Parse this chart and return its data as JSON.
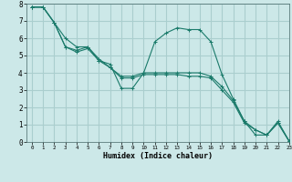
{
  "xlabel": "Humidex (Indice chaleur)",
  "ylabel": "",
  "background_color": "#cce8e8",
  "grid_color": "#aacece",
  "line_color": "#1a7a6a",
  "xlim": [
    -0.5,
    23
  ],
  "ylim": [
    0,
    8
  ],
  "xticks": [
    0,
    1,
    2,
    3,
    4,
    5,
    6,
    7,
    8,
    9,
    10,
    11,
    12,
    13,
    14,
    15,
    16,
    17,
    18,
    19,
    20,
    21,
    22,
    23
  ],
  "yticks": [
    0,
    1,
    2,
    3,
    4,
    5,
    6,
    7,
    8
  ],
  "series": [
    [
      7.8,
      7.8,
      6.9,
      6.0,
      5.5,
      5.5,
      4.7,
      4.5,
      3.1,
      3.1,
      4.0,
      5.8,
      6.3,
      6.6,
      6.5,
      6.5,
      5.8,
      3.9,
      2.5,
      1.2,
      0.4,
      0.4,
      1.2,
      0.05
    ],
    [
      7.8,
      7.8,
      6.9,
      5.5,
      5.3,
      5.5,
      4.8,
      4.3,
      3.8,
      3.8,
      4.0,
      4.0,
      4.0,
      4.0,
      4.0,
      4.0,
      3.8,
      3.2,
      2.4,
      1.2,
      0.7,
      0.4,
      1.1,
      0.05
    ],
    [
      7.8,
      7.8,
      6.9,
      5.5,
      5.2,
      5.4,
      4.7,
      4.3,
      3.7,
      3.7,
      3.9,
      3.9,
      3.9,
      3.9,
      3.8,
      3.8,
      3.7,
      3.0,
      2.3,
      1.1,
      0.7,
      0.4,
      1.1,
      0.05
    ]
  ]
}
